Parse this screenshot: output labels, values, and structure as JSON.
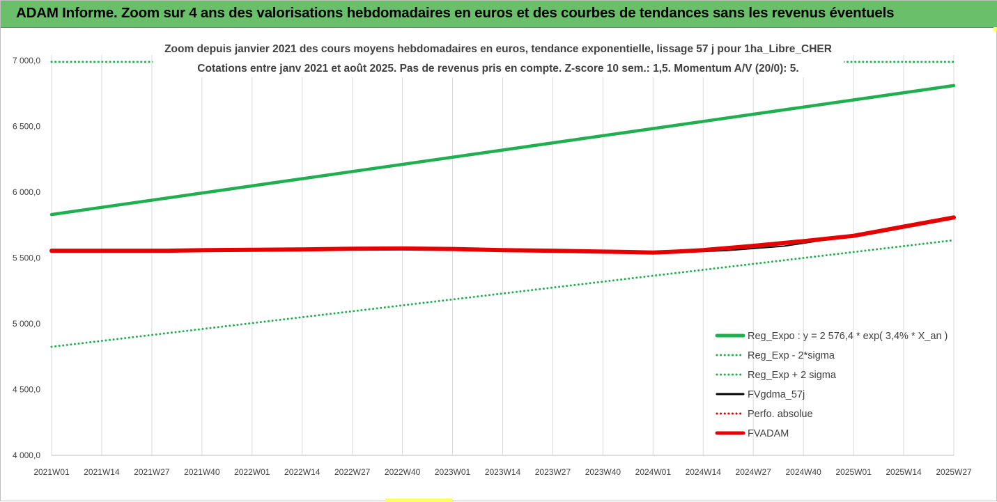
{
  "header": {
    "title": "ADAM Informe. Zoom sur 4 ans des valorisations hebdomadaires en euros et des courbes de tendances sans les revenus éventuels"
  },
  "chart_data": {
    "type": "line",
    "title_lines": [
      "Zoom depuis janvier 2021 des cours moyens hebdomadaires en euros, tendance exponentielle, lissage 57 j pour 1ha_Libre_CHER",
      "Cotations entre janv 2021 et août 2025.  Pas de revenus pris en compte. Z-score 10 sem.: 1,5. Momentum A/V (20/0): 5."
    ],
    "ylim": [
      4000,
      7000
    ],
    "y_ticks": [
      "4 000,0",
      "4 500,0",
      "5 000,0",
      "5 500,0",
      "6 000,0",
      "6 500,0",
      "7 000,0"
    ],
    "x_ticks": [
      "2021W01",
      "2021W14",
      "2021W27",
      "2021W40",
      "2022W01",
      "2022W14",
      "2022W27",
      "2022W40",
      "2023W01",
      "2023W14",
      "2023W27",
      "2023W40",
      "2024W01",
      "2024W14",
      "2024W27",
      "2024W40",
      "2025W01",
      "2025W14",
      "2025W27"
    ],
    "grid": "vertical",
    "legend_position": "bottom-right",
    "series": [
      {
        "name": "Reg_Expo : y = 2 576,4 * exp( 3,4% *  X_an )",
        "style": "solid-thick",
        "color": "#1faf4f",
        "points": [
          [
            0,
            5830
          ],
          [
            234,
            6810
          ]
        ]
      },
      {
        "name": "Reg_Exp - 2*sigma",
        "style": "dotted",
        "color": "#1faf4f",
        "points": [
          [
            0,
            4825
          ],
          [
            234,
            5635
          ]
        ]
      },
      {
        "name": "Reg_Exp + 2 sigma",
        "style": "dotted",
        "color": "#1faf4f",
        "points": [
          [
            0,
            6990
          ],
          [
            234,
            6990
          ]
        ]
      },
      {
        "name": "FVgdma_57j",
        "style": "solid",
        "color": "#000000",
        "points": [
          [
            0,
            5555
          ],
          [
            40,
            5558
          ],
          [
            65,
            5568
          ],
          [
            90,
            5572
          ],
          [
            110,
            5570
          ],
          [
            130,
            5555
          ],
          [
            150,
            5548
          ],
          [
            165,
            5545
          ],
          [
            175,
            5556
          ],
          [
            190,
            5590
          ],
          [
            210,
            5680
          ],
          [
            234,
            5805
          ]
        ]
      },
      {
        "name": "Perfo. absolue",
        "style": "dotted",
        "color": "#e00000",
        "points": []
      },
      {
        "name": "FVADAM",
        "style": "solid-thick",
        "color": "#e60000",
        "points": [
          [
            0,
            5555
          ],
          [
            20,
            5555
          ],
          [
            30,
            5555
          ],
          [
            40,
            5560
          ],
          [
            52,
            5562
          ],
          [
            65,
            5565
          ],
          [
            78,
            5570
          ],
          [
            91,
            5572
          ],
          [
            104,
            5568
          ],
          [
            117,
            5560
          ],
          [
            130,
            5555
          ],
          [
            143,
            5548
          ],
          [
            150,
            5545
          ],
          [
            156,
            5541
          ],
          [
            162,
            5548
          ],
          [
            169,
            5560
          ],
          [
            182,
            5592
          ],
          [
            195,
            5628
          ],
          [
            208,
            5668
          ],
          [
            221,
            5738
          ],
          [
            234,
            5808
          ]
        ]
      }
    ]
  }
}
